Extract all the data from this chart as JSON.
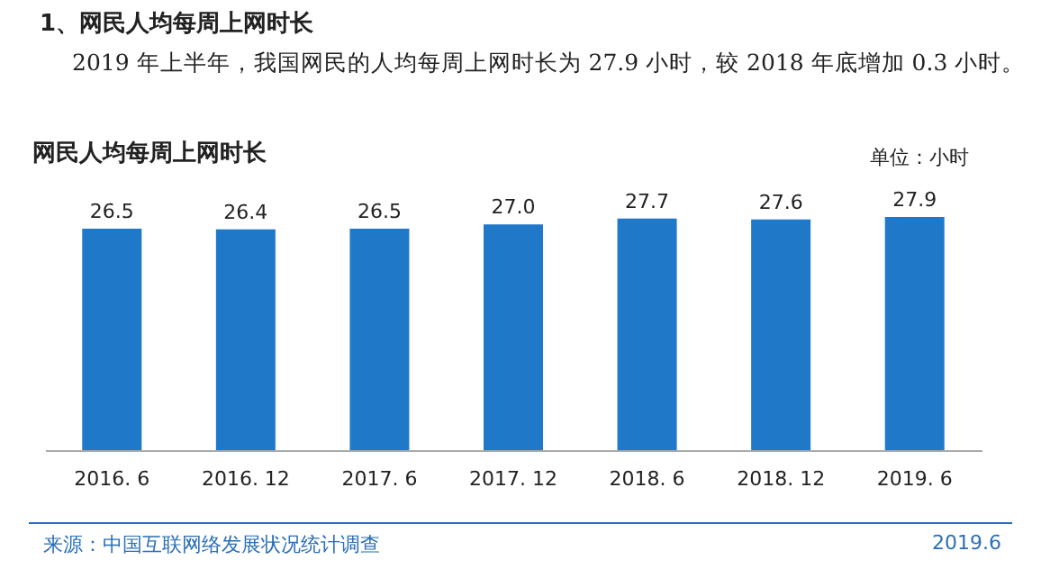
{
  "chart_data": {
    "type": "bar",
    "title": "1、网民人均每周上网时长",
    "subtitle": "2019 年上半年，我国网民的人均每周上网时长为 27.9 小时，较 2018 年底增加 0.3 小时。",
    "categories": [
      "2016. 6",
      "2016. 12",
      "2017. 6",
      "2017. 12",
      "2018. 6",
      "2018. 12",
      "2019. 6"
    ],
    "values": [
      26.5,
      26.4,
      26.5,
      27.0,
      27.7,
      27.6,
      27.9
    ],
    "value_labels": [
      "26.5",
      "26.4",
      "26.5",
      "27.0",
      "27.7",
      "27.6",
      "27.9"
    ],
    "color": "#1f78c8",
    "grid": false,
    "annotations": [
      "网民人均每周上网时长",
      "单位：小时",
      "来源：中国互联网络发展状况统计调查",
      "2019.6"
    ]
  }
}
